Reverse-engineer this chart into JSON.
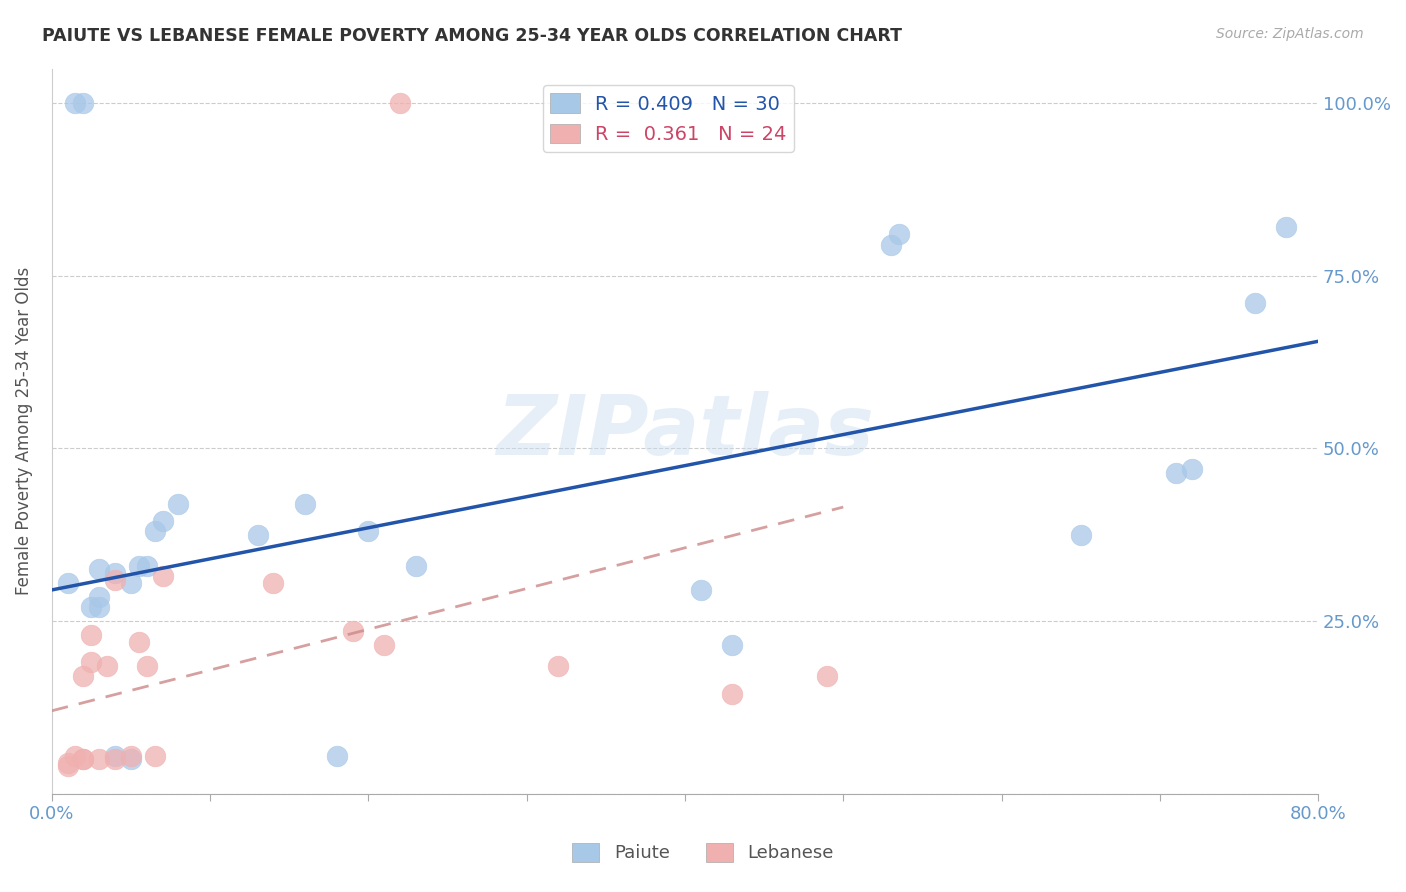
{
  "title": "PAIUTE VS LEBANESE FEMALE POVERTY AMONG 25-34 YEAR OLDS CORRELATION CHART",
  "source": "Source: ZipAtlas.com",
  "ylabel": "Female Poverty Among 25-34 Year Olds",
  "watermark": "ZIPatlas",
  "xlim": [
    0.0,
    0.8
  ],
  "ylim": [
    0.0,
    1.05
  ],
  "paiute_R": 0.409,
  "paiute_N": 30,
  "lebanese_R": 0.361,
  "lebanese_N": 24,
  "paiute_color": "#a8c8e8",
  "lebanese_color": "#f0b0b0",
  "paiute_line_color": "#2255aa",
  "lebanese_line_color": "#cc8888",
  "tick_label_color": "#6699cc",
  "paiute_x": [
    0.01,
    0.015,
    0.02,
    0.025,
    0.03,
    0.03,
    0.03,
    0.04,
    0.04,
    0.05,
    0.05,
    0.055,
    0.06,
    0.065,
    0.07,
    0.08,
    0.13,
    0.16,
    0.18,
    0.2,
    0.23,
    0.41,
    0.43,
    0.53,
    0.535,
    0.65,
    0.71,
    0.72,
    0.76,
    0.78
  ],
  "paiute_y": [
    0.305,
    1.0,
    1.0,
    0.27,
    0.325,
    0.285,
    0.27,
    0.055,
    0.32,
    0.305,
    0.05,
    0.33,
    0.33,
    0.38,
    0.395,
    0.42,
    0.375,
    0.42,
    0.055,
    0.38,
    0.33,
    0.295,
    0.215,
    0.795,
    0.81,
    0.375,
    0.465,
    0.47,
    0.71,
    0.82
  ],
  "lebanese_x": [
    0.01,
    0.01,
    0.015,
    0.02,
    0.02,
    0.02,
    0.025,
    0.025,
    0.03,
    0.035,
    0.04,
    0.04,
    0.05,
    0.055,
    0.06,
    0.065,
    0.07,
    0.14,
    0.19,
    0.21,
    0.22,
    0.32,
    0.43,
    0.49
  ],
  "lebanese_y": [
    0.04,
    0.045,
    0.055,
    0.05,
    0.05,
    0.17,
    0.19,
    0.23,
    0.05,
    0.185,
    0.05,
    0.31,
    0.055,
    0.22,
    0.185,
    0.055,
    0.315,
    0.305,
    0.235,
    0.215,
    1.0,
    0.185,
    0.145,
    0.17
  ],
  "paiute_line_x0": 0.0,
  "paiute_line_y0": 0.295,
  "paiute_line_x1": 0.8,
  "paiute_line_y1": 0.655,
  "lebanese_line_x0": 0.0,
  "lebanese_line_y0": 0.12,
  "lebanese_line_x1": 0.5,
  "lebanese_line_y1": 0.415
}
